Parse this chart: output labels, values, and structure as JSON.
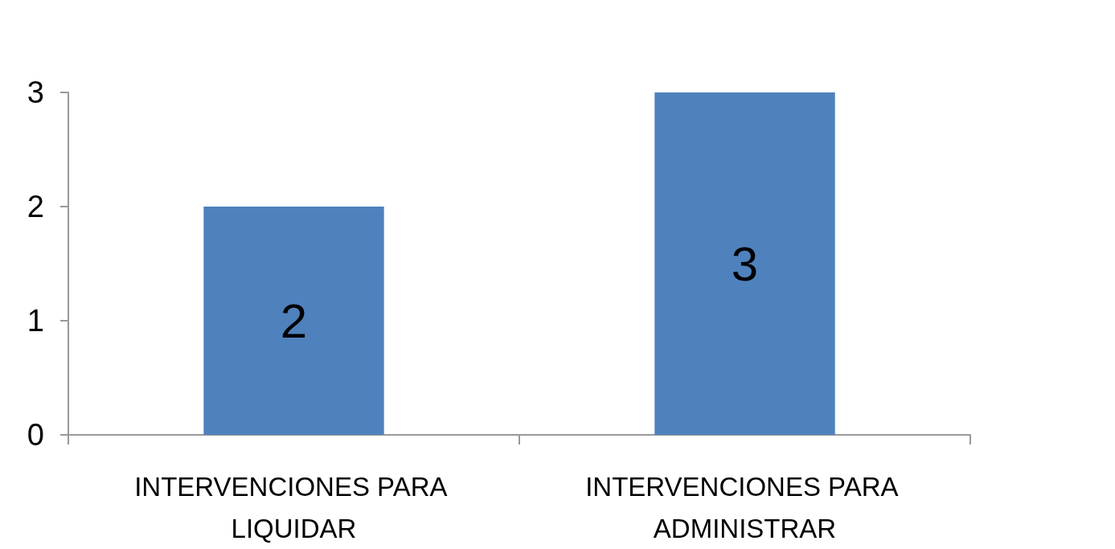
{
  "chart_data": {
    "type": "bar",
    "categories": [
      "INTERVENCIONES PARA LIQUIDAR",
      "INTERVENCIONES PARA ADMINISTRAR"
    ],
    "values": [
      2,
      3
    ],
    "color": "#4f81bd",
    "ylim": [
      0,
      3
    ],
    "yticks": [
      0,
      1,
      2,
      3
    ],
    "grid": false,
    "data_labels": true
  }
}
